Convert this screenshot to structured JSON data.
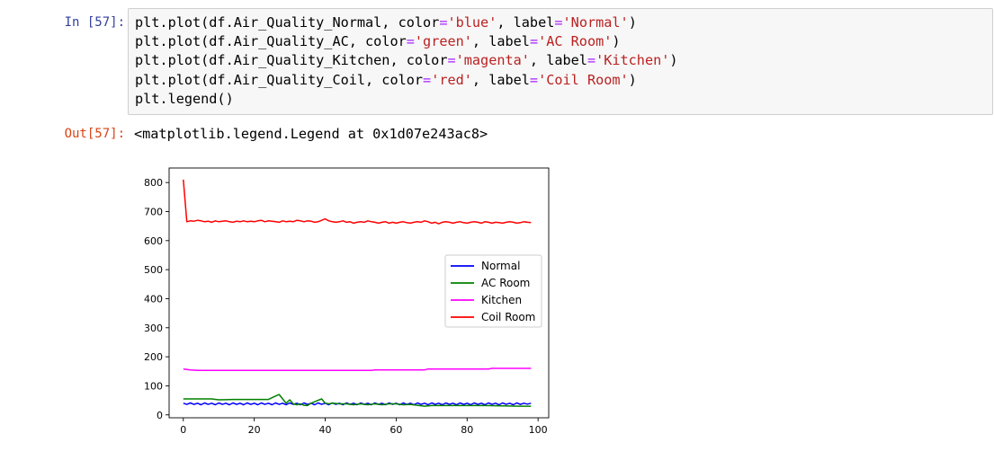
{
  "cell": {
    "in_prompt": "In [57]:",
    "out_prompt": "Out[57]:",
    "code_lines": [
      [
        {
          "t": "plt.plot(df.Air_Quality_Normal, color"
        },
        {
          "t": "=",
          "c": "op"
        },
        {
          "t": "'blue'",
          "c": "str"
        },
        {
          "t": ", label"
        },
        {
          "t": "=",
          "c": "op"
        },
        {
          "t": "'Normal'",
          "c": "str"
        },
        {
          "t": ")"
        }
      ],
      [
        {
          "t": "plt.plot(df.Air_Quality_AC, color"
        },
        {
          "t": "=",
          "c": "op"
        },
        {
          "t": "'green'",
          "c": "str"
        },
        {
          "t": ", label"
        },
        {
          "t": "=",
          "c": "op"
        },
        {
          "t": "'AC Room'",
          "c": "str"
        },
        {
          "t": ")"
        }
      ],
      [
        {
          "t": "plt.plot(df.Air_Quality_Kitchen, color"
        },
        {
          "t": "=",
          "c": "op"
        },
        {
          "t": "'magenta'",
          "c": "str"
        },
        {
          "t": ", label"
        },
        {
          "t": "=",
          "c": "op"
        },
        {
          "t": "'Kitchen'",
          "c": "str"
        },
        {
          "t": ")"
        }
      ],
      [
        {
          "t": "plt.plot(df.Air_Quality_Coil, color"
        },
        {
          "t": "=",
          "c": "op"
        },
        {
          "t": "'red'",
          "c": "str"
        },
        {
          "t": ", label"
        },
        {
          "t": "=",
          "c": "op"
        },
        {
          "t": "'Coil Room'",
          "c": "str"
        },
        {
          "t": ")"
        }
      ],
      [
        {
          "t": "plt.legend()"
        }
      ]
    ],
    "output_text": "<matplotlib.legend.Legend at 0x1d07e243ac8>"
  },
  "colors": {
    "in_prompt": "#303f9f",
    "out_prompt": "#d84315",
    "string": "#ba2121",
    "operator": "#aa22ff"
  },
  "chart_data": {
    "type": "line",
    "xlim": [
      -4,
      103
    ],
    "ylim": [
      -10,
      850
    ],
    "xticks": [
      0,
      20,
      40,
      60,
      80,
      100
    ],
    "yticks": [
      0,
      100,
      200,
      300,
      400,
      500,
      600,
      700,
      800
    ],
    "legend_position": "center-right",
    "grid": false,
    "series": [
      {
        "name": "Normal",
        "color": "#0000ff",
        "x": [
          0,
          1,
          2,
          3,
          4,
          5,
          6,
          7,
          8,
          9,
          10,
          11,
          12,
          13,
          14,
          15,
          16,
          17,
          18,
          19,
          20,
          21,
          22,
          23,
          24,
          25,
          26,
          27,
          28,
          29,
          30,
          31,
          32,
          33,
          34,
          35,
          36,
          37,
          38,
          39,
          40,
          41,
          42,
          43,
          44,
          45,
          46,
          47,
          48,
          49,
          50,
          51,
          52,
          53,
          54,
          55,
          56,
          57,
          58,
          59,
          60,
          61,
          62,
          63,
          64,
          65,
          66,
          67,
          68,
          69,
          70,
          71,
          72,
          73,
          74,
          75,
          76,
          77,
          78,
          79,
          80,
          81,
          82,
          83,
          84,
          85,
          86,
          87,
          88,
          89,
          90,
          91,
          92,
          93,
          94,
          95,
          96,
          97,
          98
        ],
        "y": [
          40,
          36,
          41,
          36,
          40,
          35,
          41,
          36,
          40,
          35,
          41,
          36,
          40,
          35,
          41,
          36,
          40,
          35,
          41,
          36,
          40,
          35,
          41,
          36,
          40,
          35,
          41,
          36,
          40,
          35,
          41,
          36,
          40,
          35,
          41,
          36,
          40,
          35,
          41,
          36,
          40,
          35,
          41,
          36,
          40,
          35,
          41,
          36,
          40,
          35,
          41,
          36,
          40,
          35,
          41,
          36,
          40,
          35,
          41,
          36,
          40,
          35,
          41,
          36,
          40,
          35,
          41,
          36,
          40,
          35,
          41,
          36,
          40,
          35,
          41,
          36,
          40,
          35,
          41,
          36,
          40,
          35,
          41,
          36,
          40,
          35,
          41,
          36,
          40,
          35,
          41,
          36,
          40,
          35,
          41,
          36,
          40,
          37,
          40
        ]
      },
      {
        "name": "AC Room",
        "color": "#008000",
        "x": [
          0,
          3,
          8,
          10,
          14,
          20,
          24,
          26,
          27,
          28,
          29,
          30,
          31,
          32,
          33,
          34,
          35,
          36,
          37,
          38,
          39,
          40,
          41,
          42,
          44,
          46,
          48,
          50,
          52,
          54,
          56,
          58,
          60,
          62,
          64,
          66,
          68,
          70,
          75,
          80,
          85,
          90,
          95,
          98
        ],
        "y": [
          55,
          55,
          55,
          52,
          53,
          53,
          53,
          65,
          70,
          55,
          40,
          52,
          38,
          35,
          38,
          33,
          32,
          40,
          45,
          50,
          55,
          40,
          38,
          40,
          38,
          38,
          35,
          38,
          35,
          38,
          35,
          38,
          38,
          35,
          36,
          33,
          30,
          32,
          32,
          32,
          32,
          31,
          30,
          30
        ]
      },
      {
        "name": "Kitchen",
        "color": "#ff00ff",
        "x": [
          0,
          2,
          4,
          10,
          20,
          30,
          40,
          53,
          54,
          60,
          68,
          69,
          70,
          80,
          86,
          87,
          90,
          98
        ],
        "y": [
          158,
          155,
          153,
          153,
          153,
          153,
          153,
          153,
          155,
          155,
          155,
          158,
          158,
          158,
          158,
          160,
          160,
          160
        ]
      },
      {
        "name": "Coil Room",
        "color": "#ff0000",
        "x": [
          0,
          1,
          2,
          3,
          4,
          5,
          6,
          7,
          8,
          9,
          10,
          11,
          12,
          13,
          14,
          15,
          16,
          17,
          18,
          19,
          20,
          21,
          22,
          23,
          24,
          25,
          26,
          27,
          28,
          29,
          30,
          31,
          32,
          33,
          34,
          35,
          36,
          37,
          38,
          39,
          40,
          41,
          42,
          43,
          44,
          45,
          46,
          47,
          48,
          49,
          50,
          51,
          52,
          53,
          54,
          55,
          56,
          57,
          58,
          59,
          60,
          61,
          62,
          63,
          64,
          65,
          66,
          67,
          68,
          69,
          70,
          71,
          72,
          73,
          74,
          75,
          76,
          77,
          78,
          79,
          80,
          81,
          82,
          83,
          84,
          85,
          86,
          87,
          88,
          89,
          90,
          91,
          92,
          93,
          94,
          95,
          96,
          97,
          98
        ],
        "y": [
          810,
          665,
          668,
          667,
          670,
          668,
          665,
          667,
          663,
          668,
          665,
          667,
          668,
          665,
          663,
          667,
          665,
          668,
          665,
          667,
          665,
          668,
          670,
          665,
          668,
          667,
          665,
          663,
          668,
          665,
          667,
          665,
          670,
          668,
          665,
          668,
          667,
          663,
          665,
          670,
          675,
          668,
          665,
          663,
          665,
          668,
          663,
          665,
          660,
          663,
          665,
          663,
          668,
          665,
          663,
          660,
          663,
          665,
          660,
          663,
          660,
          663,
          665,
          662,
          660,
          663,
          665,
          663,
          668,
          665,
          660,
          663,
          658,
          663,
          665,
          663,
          660,
          663,
          665,
          662,
          660,
          663,
          665,
          663,
          660,
          665,
          663,
          660,
          663,
          662,
          660,
          663,
          665,
          663,
          660,
          662,
          665,
          663,
          662
        ]
      }
    ]
  }
}
